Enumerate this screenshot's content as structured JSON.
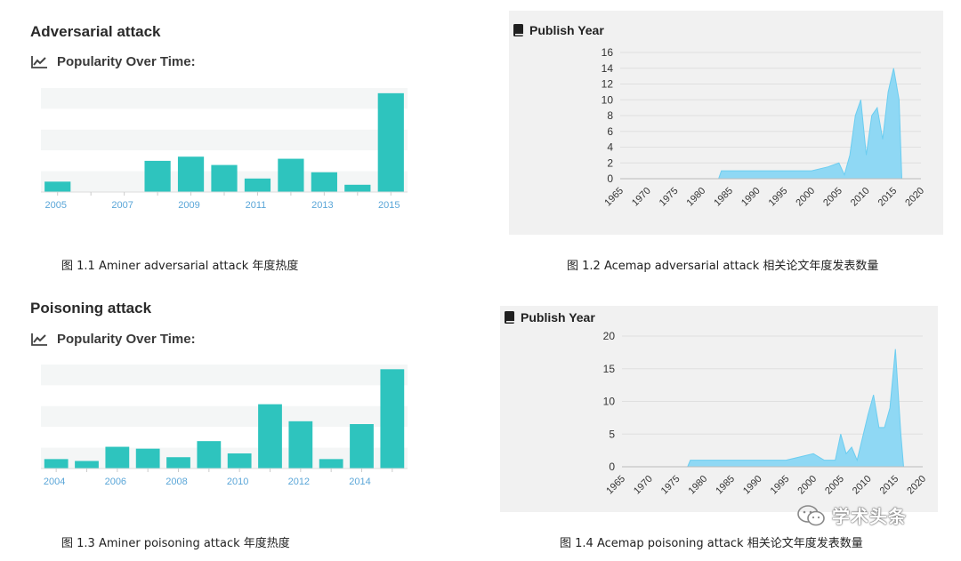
{
  "panels": {
    "aminer_adv": {
      "title": "Adversarial attack",
      "subtitle": "Popularity Over Time:",
      "caption": "图 1.1 Aminer adversarial attack 年度热度"
    },
    "acemap_adv": {
      "title": "Publish Year",
      "caption": "图 1.2 Acemap adversarial attack 相关论文年度发表数量"
    },
    "aminer_poi": {
      "title": "Poisoning attack",
      "subtitle": "Popularity Over Time:",
      "caption": "图 1.3 Aminer poisoning attack 年度热度"
    },
    "acemap_poi": {
      "title": "Publish Year",
      "caption": "图 1.4 Acemap poisoning attack 相关论文年度发表数量"
    }
  },
  "watermark": "学术头条",
  "colors": {
    "bar": "#2ec4be",
    "area": "#8fd8f4",
    "area_stroke": "#6ccdf0",
    "panel_bg": "#f1f1f1"
  },
  "icons": {
    "trend": "line-chart-icon",
    "book": "book-icon",
    "wechat": "wechat-icon"
  },
  "chart_data": [
    {
      "type": "bar",
      "categories": [
        "2005",
        "2006",
        "2007",
        "2008",
        "2009",
        "2010",
        "2011",
        "2012",
        "2013",
        "2014",
        "2015"
      ],
      "xtick_labels": [
        "2005",
        "2007",
        "2009",
        "2011",
        "2013",
        "2015"
      ],
      "values": [
        1,
        0,
        0,
        3,
        3.4,
        2.6,
        1.3,
        3.2,
        1.9,
        0.7,
        9.5
      ],
      "ylim": [
        0,
        10
      ],
      "grid": true,
      "title": "",
      "xlabel": "",
      "ylabel": ""
    },
    {
      "type": "area",
      "title": "Publish Year",
      "xlim": [
        1965,
        2020
      ],
      "ylim": [
        0,
        16
      ],
      "yticks": [
        0,
        2,
        4,
        6,
        8,
        10,
        12,
        14,
        16
      ],
      "xticks": [
        1965,
        1970,
        1975,
        1980,
        1985,
        1990,
        1995,
        2000,
        2005,
        2010,
        2015,
        2020
      ],
      "grid": true,
      "x": [
        1965,
        1983,
        1983.5,
        1985,
        1990,
        1995,
        2000,
        2003,
        2005,
        2006,
        2007,
        2008,
        2009,
        2010,
        2011,
        2012,
        2013,
        2014,
        2015,
        2016,
        2016.5
      ],
      "values": [
        0,
        0,
        1,
        1,
        1,
        1,
        1,
        1.5,
        2,
        0.5,
        3,
        8,
        10,
        3,
        8,
        9,
        5,
        11,
        14,
        10,
        0
      ]
    },
    {
      "type": "bar",
      "categories": [
        "2004",
        "2005",
        "2006",
        "2007",
        "2008",
        "2009",
        "2010",
        "2011",
        "2012",
        "2013",
        "2014",
        "2015"
      ],
      "xtick_labels": [
        "2004",
        "2006",
        "2008",
        "2010",
        "2012",
        "2014"
      ],
      "values": [
        1,
        0.8,
        2.3,
        2.1,
        1.2,
        2.9,
        1.6,
        6.8,
        5,
        1,
        4.7,
        10.5
      ],
      "ylim": [
        0,
        11
      ],
      "grid": true,
      "title": "",
      "xlabel": "",
      "ylabel": ""
    },
    {
      "type": "area",
      "title": "Publish Year",
      "xlim": [
        1965,
        2020
      ],
      "ylim": [
        0,
        20
      ],
      "yticks": [
        0,
        5,
        10,
        15,
        20
      ],
      "xticks": [
        1965,
        1970,
        1975,
        1980,
        1985,
        1990,
        1995,
        2000,
        2005,
        2010,
        2015,
        2020
      ],
      "grid": true,
      "x": [
        1965,
        1977,
        1977.5,
        1980,
        1985,
        1990,
        1995,
        2000,
        2002,
        2004,
        2005,
        2006,
        2007,
        2008,
        2010,
        2011,
        2012,
        2013,
        2014,
        2015,
        2016,
        2016.5
      ],
      "values": [
        0,
        0,
        1,
        1,
        1,
        1,
        1,
        2,
        1,
        1,
        5,
        2,
        3,
        1,
        8,
        11,
        6,
        6,
        9,
        18,
        5,
        0
      ]
    }
  ]
}
